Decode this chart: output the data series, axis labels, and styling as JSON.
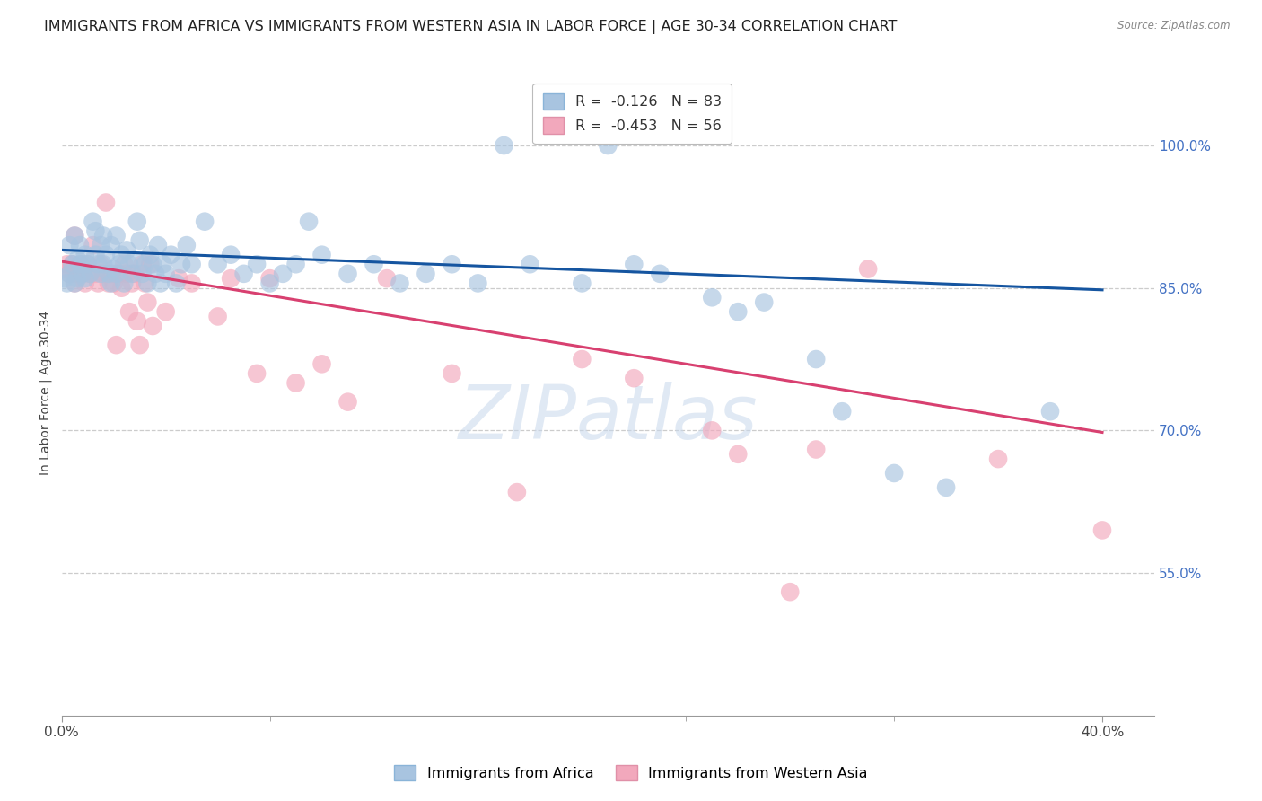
{
  "title": "IMMIGRANTS FROM AFRICA VS IMMIGRANTS FROM WESTERN ASIA IN LABOR FORCE | AGE 30-34 CORRELATION CHART",
  "source": "Source: ZipAtlas.com",
  "ylabel": "In Labor Force | Age 30-34",
  "xlim": [
    0.0,
    0.42
  ],
  "ylim": [
    0.4,
    1.08
  ],
  "yticks": [
    0.55,
    0.7,
    0.85,
    1.0
  ],
  "ytick_labels": [
    "55.0%",
    "70.0%",
    "85.0%",
    "100.0%"
  ],
  "blue_color": "#a8c4e0",
  "pink_color": "#f2a8bc",
  "line_blue": "#1555a0",
  "line_pink": "#d84070",
  "watermark_text": "ZIPatlas",
  "watermark_color": "#c8d8ec",
  "blue_trendline": [
    0.0,
    0.89,
    0.4,
    0.848
  ],
  "pink_trendline": [
    0.0,
    0.878,
    0.4,
    0.698
  ],
  "africa_points": [
    [
      0.001,
      0.86
    ],
    [
      0.002,
      0.855
    ],
    [
      0.003,
      0.865
    ],
    [
      0.003,
      0.895
    ],
    [
      0.004,
      0.875
    ],
    [
      0.005,
      0.905
    ],
    [
      0.005,
      0.855
    ],
    [
      0.006,
      0.88
    ],
    [
      0.006,
      0.86
    ],
    [
      0.007,
      0.875
    ],
    [
      0.007,
      0.895
    ],
    [
      0.008,
      0.865
    ],
    [
      0.008,
      0.875
    ],
    [
      0.009,
      0.885
    ],
    [
      0.009,
      0.86
    ],
    [
      0.01,
      0.875
    ],
    [
      0.011,
      0.865
    ],
    [
      0.012,
      0.92
    ],
    [
      0.013,
      0.91
    ],
    [
      0.013,
      0.885
    ],
    [
      0.014,
      0.875
    ],
    [
      0.015,
      0.865
    ],
    [
      0.015,
      0.895
    ],
    [
      0.016,
      0.905
    ],
    [
      0.016,
      0.875
    ],
    [
      0.017,
      0.885
    ],
    [
      0.018,
      0.865
    ],
    [
      0.019,
      0.855
    ],
    [
      0.019,
      0.895
    ],
    [
      0.02,
      0.87
    ],
    [
      0.021,
      0.905
    ],
    [
      0.021,
      0.865
    ],
    [
      0.022,
      0.875
    ],
    [
      0.023,
      0.885
    ],
    [
      0.024,
      0.855
    ],
    [
      0.025,
      0.89
    ],
    [
      0.026,
      0.875
    ],
    [
      0.027,
      0.865
    ],
    [
      0.028,
      0.88
    ],
    [
      0.029,
      0.92
    ],
    [
      0.03,
      0.9
    ],
    [
      0.031,
      0.865
    ],
    [
      0.032,
      0.875
    ],
    [
      0.033,
      0.855
    ],
    [
      0.034,
      0.885
    ],
    [
      0.035,
      0.875
    ],
    [
      0.036,
      0.865
    ],
    [
      0.037,
      0.895
    ],
    [
      0.038,
      0.855
    ],
    [
      0.039,
      0.875
    ],
    [
      0.04,
      0.865
    ],
    [
      0.042,
      0.885
    ],
    [
      0.044,
      0.855
    ],
    [
      0.046,
      0.875
    ],
    [
      0.048,
      0.895
    ],
    [
      0.05,
      0.875
    ],
    [
      0.055,
      0.92
    ],
    [
      0.06,
      0.875
    ],
    [
      0.065,
      0.885
    ],
    [
      0.07,
      0.865
    ],
    [
      0.075,
      0.875
    ],
    [
      0.08,
      0.855
    ],
    [
      0.085,
      0.865
    ],
    [
      0.09,
      0.875
    ],
    [
      0.095,
      0.92
    ],
    [
      0.1,
      0.885
    ],
    [
      0.11,
      0.865
    ],
    [
      0.12,
      0.875
    ],
    [
      0.13,
      0.855
    ],
    [
      0.14,
      0.865
    ],
    [
      0.15,
      0.875
    ],
    [
      0.16,
      0.855
    ],
    [
      0.18,
      0.875
    ],
    [
      0.2,
      0.855
    ],
    [
      0.22,
      0.875
    ],
    [
      0.23,
      0.865
    ],
    [
      0.25,
      0.84
    ],
    [
      0.26,
      0.825
    ],
    [
      0.27,
      0.835
    ],
    [
      0.29,
      0.775
    ],
    [
      0.3,
      0.72
    ],
    [
      0.32,
      0.655
    ],
    [
      0.34,
      0.64
    ],
    [
      0.38,
      0.72
    ],
    [
      0.17,
      1.0
    ],
    [
      0.21,
      1.0
    ]
  ],
  "westernasia_points": [
    [
      0.001,
      0.87
    ],
    [
      0.002,
      0.875
    ],
    [
      0.003,
      0.865
    ],
    [
      0.004,
      0.875
    ],
    [
      0.005,
      0.855
    ],
    [
      0.005,
      0.905
    ],
    [
      0.006,
      0.865
    ],
    [
      0.007,
      0.875
    ],
    [
      0.008,
      0.865
    ],
    [
      0.009,
      0.855
    ],
    [
      0.01,
      0.875
    ],
    [
      0.011,
      0.865
    ],
    [
      0.012,
      0.895
    ],
    [
      0.013,
      0.865
    ],
    [
      0.014,
      0.855
    ],
    [
      0.015,
      0.875
    ],
    [
      0.016,
      0.865
    ],
    [
      0.017,
      0.94
    ],
    [
      0.018,
      0.855
    ],
    [
      0.019,
      0.865
    ],
    [
      0.02,
      0.855
    ],
    [
      0.021,
      0.79
    ],
    [
      0.022,
      0.865
    ],
    [
      0.023,
      0.85
    ],
    [
      0.024,
      0.875
    ],
    [
      0.025,
      0.865
    ],
    [
      0.026,
      0.825
    ],
    [
      0.027,
      0.855
    ],
    [
      0.028,
      0.865
    ],
    [
      0.029,
      0.815
    ],
    [
      0.03,
      0.79
    ],
    [
      0.031,
      0.875
    ],
    [
      0.032,
      0.855
    ],
    [
      0.033,
      0.835
    ],
    [
      0.034,
      0.875
    ],
    [
      0.035,
      0.81
    ],
    [
      0.04,
      0.825
    ],
    [
      0.045,
      0.86
    ],
    [
      0.05,
      0.855
    ],
    [
      0.06,
      0.82
    ],
    [
      0.065,
      0.86
    ],
    [
      0.075,
      0.76
    ],
    [
      0.08,
      0.86
    ],
    [
      0.09,
      0.75
    ],
    [
      0.1,
      0.77
    ],
    [
      0.11,
      0.73
    ],
    [
      0.125,
      0.86
    ],
    [
      0.15,
      0.76
    ],
    [
      0.175,
      0.635
    ],
    [
      0.2,
      0.775
    ],
    [
      0.22,
      0.755
    ],
    [
      0.25,
      0.7
    ],
    [
      0.26,
      0.675
    ],
    [
      0.28,
      0.53
    ],
    [
      0.29,
      0.68
    ],
    [
      0.31,
      0.87
    ],
    [
      0.36,
      0.67
    ],
    [
      0.4,
      0.595
    ]
  ],
  "background_color": "#ffffff",
  "grid_color": "#cccccc",
  "title_fontsize": 11.5,
  "axis_label_fontsize": 10,
  "tick_fontsize": 11,
  "right_tick_color": "#4472c4"
}
